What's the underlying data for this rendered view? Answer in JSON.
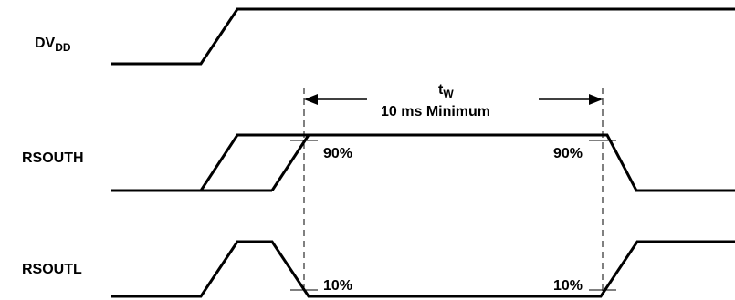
{
  "signals": {
    "dvdd": {
      "main": "DV",
      "sub": "DD"
    },
    "rsouth": {
      "label": "RSOUTH"
    },
    "rsoutl": {
      "label": "RSOUTL"
    }
  },
  "pulse_width": {
    "symbol_main": "t",
    "symbol_sub": "W",
    "caption": "10 ms Minimum"
  },
  "thresholds": {
    "high_left": "90%",
    "high_right": "90%",
    "low_left": "10%",
    "low_right": "10%"
  },
  "colors": {
    "ink": "#000000",
    "background": "#ffffff"
  }
}
